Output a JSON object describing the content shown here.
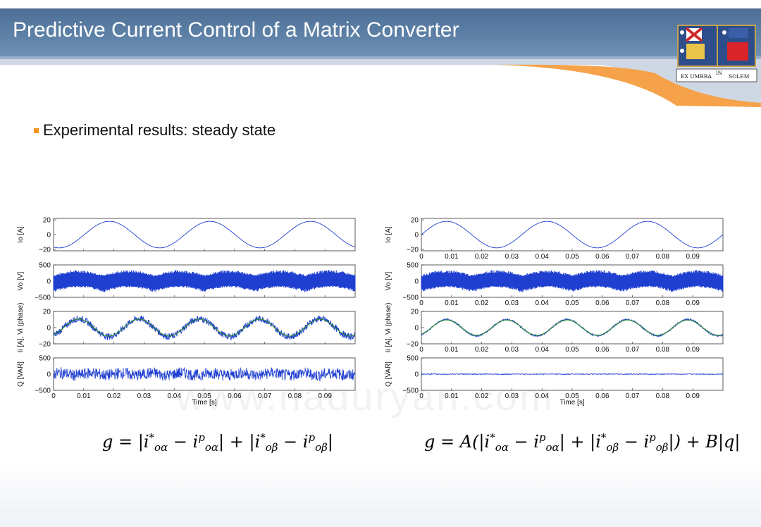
{
  "header": {
    "title": "Predictive Current Control of a Matrix Converter",
    "logo_text": [
      "EX UMBRA",
      "IN",
      "SOLEM"
    ]
  },
  "bullet": {
    "text": "Experimental results: steady state"
  },
  "watermark": "www.haduryan.com",
  "formulas": {
    "left": "g = |i*oα − ipoα| + |i*oβ − ipoβ|",
    "right": "g = A(|i*oα − ipoα| + |i*oβ − ipoβ|) + B|q|"
  },
  "chart_data": [
    {
      "type": "line",
      "panel": "left",
      "xlabel": "Time [s]",
      "xlim": [
        0,
        0.1
      ],
      "xticks": [
        "0",
        "0.01",
        "0.02",
        "0.03",
        "0.04",
        "0.05",
        "0.06",
        "0.07",
        "0.08",
        "0.09"
      ],
      "subplots": [
        {
          "ylabel": "I_o [A]",
          "ylim": [
            -22,
            22
          ],
          "yticks": [
            "20",
            "0",
            "−20"
          ],
          "signal": "sinusoid",
          "amplitude": 18,
          "frequency_hz": 30,
          "phase_deg": -110,
          "noise": 0
        },
        {
          "ylabel": "V_o [V]",
          "ylim": [
            -500,
            500
          ],
          "yticks": [
            "500",
            "0",
            "−500"
          ],
          "signal": "pwm_band",
          "amplitude": 300,
          "envelope_frequency_hz": 30
        },
        {
          "ylabel": "I_i [A], V_i (phase)",
          "ylim": [
            -20,
            20
          ],
          "yticks": [
            "20",
            "0",
            "−20"
          ],
          "signal": "sinusoid",
          "amplitude": 11,
          "frequency_hz": 50,
          "phase_deg": -60,
          "noise": 4,
          "reference_color": "#2a8a2a"
        },
        {
          "ylabel": "Q [VAR]",
          "ylim": [
            -500,
            500
          ],
          "yticks": [
            "500",
            "0",
            "−500"
          ],
          "signal": "noise",
          "amplitude": 180
        }
      ]
    },
    {
      "type": "line",
      "panel": "right",
      "xlabel": "Time [s]",
      "xlim": [
        0,
        0.1
      ],
      "xticks": [
        "0",
        "0.01",
        "0.02",
        "0.03",
        "0.04",
        "0.05",
        "0.06",
        "0.07",
        "0.08",
        "0.09"
      ],
      "subplots": [
        {
          "ylabel": "I_o [A]",
          "ylim": [
            -22,
            22
          ],
          "yticks": [
            "20",
            "0",
            "−20"
          ],
          "signal": "sinusoid",
          "amplitude": 18,
          "frequency_hz": 30,
          "phase_deg": 0,
          "noise": 0
        },
        {
          "ylabel": "V_o [V]",
          "ylim": [
            -500,
            500
          ],
          "yticks": [
            "500",
            "0",
            "−500"
          ],
          "signal": "pwm_band",
          "amplitude": 300,
          "envelope_frequency_hz": 30
        },
        {
          "ylabel": "I_i [A], V_i (phase)",
          "ylim": [
            -20,
            20
          ],
          "yticks": [
            "20",
            "0",
            "−20"
          ],
          "signal": "sinusoid",
          "amplitude": 10,
          "frequency_hz": 50,
          "phase_deg": -60,
          "noise": 1,
          "reference_color": "#2a8a2a"
        },
        {
          "ylabel": "Q [VAR]",
          "ylim": [
            -500,
            500
          ],
          "yticks": [
            "500",
            "0",
            "−500"
          ],
          "signal": "noise",
          "amplitude": 12
        }
      ]
    }
  ],
  "colors": {
    "header_blue": "#5a7ea4",
    "accent_orange": "#f7941d",
    "trace_blue": "#1f3fd0",
    "reference_green": "#2a8a2a"
  }
}
